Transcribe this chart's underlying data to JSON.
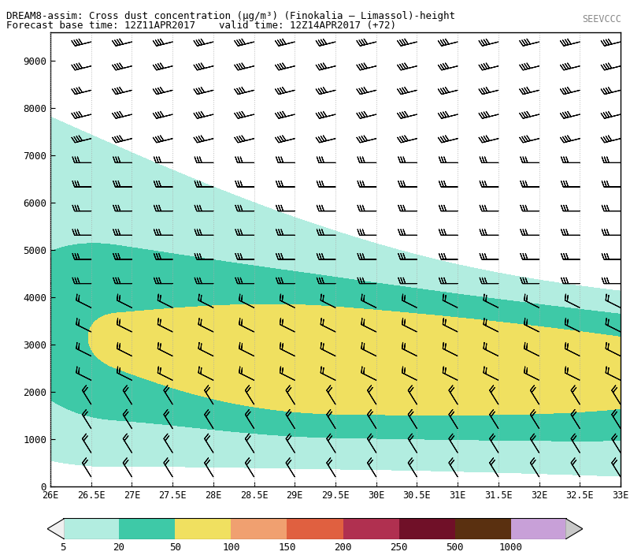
{
  "title_line1": "DREAM8-assim: Cross dust concentration (μg/m³) (Finokalia – Limassol)-height",
  "title_line2": "Forecast base time: 12Z11APR2017    valid time: 12Z14APR2017 (+72)",
  "x_min": 26.0,
  "x_max": 33.0,
  "y_min": 0,
  "y_max": 9600,
  "x_ticks": [
    26.0,
    26.5,
    27.0,
    27.5,
    28.0,
    28.5,
    29.0,
    29.5,
    30.0,
    30.5,
    31.0,
    31.5,
    32.0,
    32.5,
    33.0
  ],
  "x_tick_labels": [
    "26E",
    "26.5E",
    "27E",
    "27.5E",
    "28E",
    "28.5E",
    "29E",
    "29.5E",
    "30E",
    "30.5E",
    "31E",
    "31.5E",
    "32E",
    "32.5E",
    "33E"
  ],
  "y_ticks": [
    0,
    1000,
    2000,
    3000,
    4000,
    5000,
    6000,
    7000,
    8000,
    9000
  ],
  "colorbar_levels": [
    5,
    20,
    50,
    100,
    150,
    200,
    250,
    500,
    1000
  ],
  "colorbar_colors": [
    "#b2ede0",
    "#3ec9a7",
    "#f0e060",
    "#f0a070",
    "#e06040",
    "#b03050",
    "#701028",
    "#5a3010",
    "#c8a0d8"
  ],
  "bg_color": "#ffffff",
  "wind_color": "#000000",
  "dotted_line_color": "#aaaaaa",
  "cyan_color": "#b2ede0",
  "green_color": "#3ec9a7",
  "yellow_color": "#f0e060"
}
